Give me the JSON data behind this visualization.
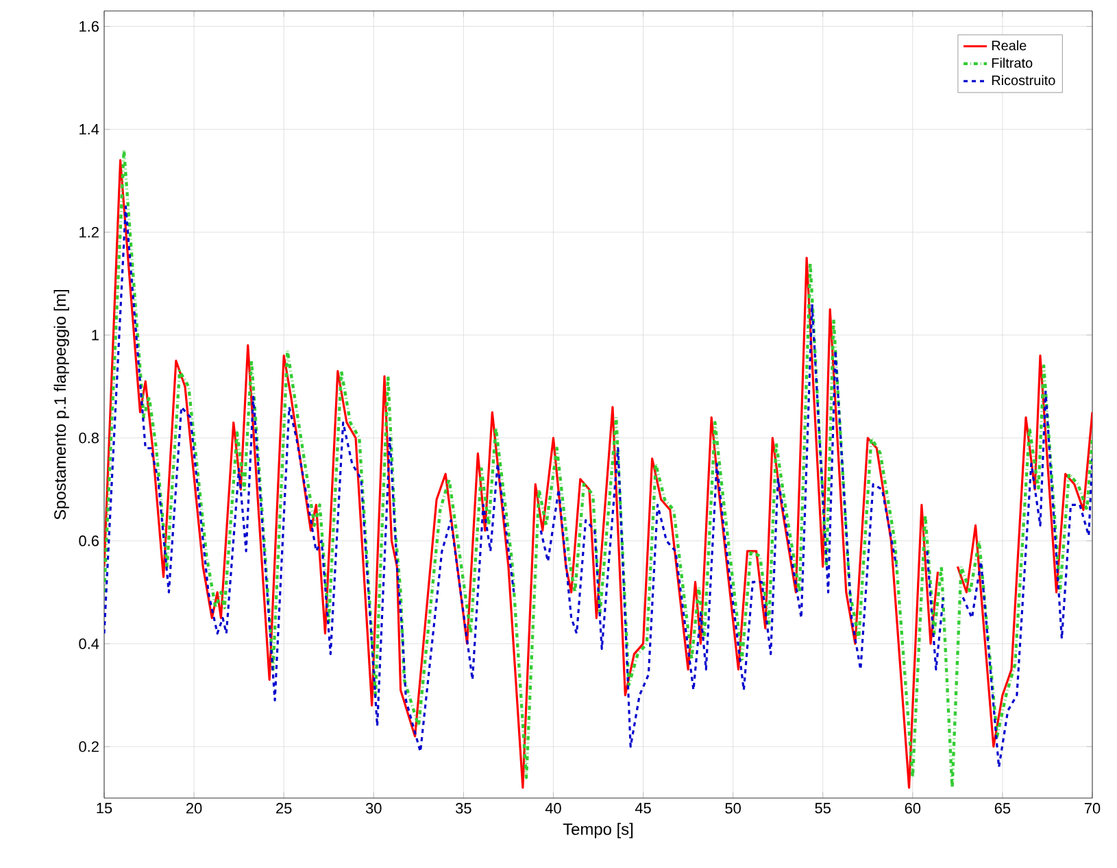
{
  "chart_data": {
    "type": "line",
    "xlabel": "Tempo [s]",
    "ylabel": "Spostamento p.1 flappeggio [m]",
    "xlim": [
      15,
      70
    ],
    "xticks": [
      15,
      20,
      25,
      30,
      35,
      40,
      45,
      50,
      55,
      60,
      65,
      70
    ],
    "ylim": [
      0.1,
      1.63
    ],
    "yticks": [
      0.2,
      0.4,
      0.6,
      0.8,
      {
        "value": 1,
        "label": "1"
      },
      1.2,
      1.4,
      1.6
    ],
    "grid": true,
    "legend": "top right",
    "marker": "none",
    "series": [
      {
        "name": "Reale",
        "color": "#ff0000",
        "line_style": "solid",
        "x": [
          15,
          15.9,
          17.0,
          17.3,
          17.7,
          18.3,
          19.0,
          19.5,
          20.5,
          21.0,
          21.3,
          21.5,
          22.2,
          22.6,
          23.0,
          24.2,
          25.0,
          25.4,
          26.5,
          26.8,
          27.3,
          28.0,
          28.5,
          29.0,
          29.9,
          30.6,
          31.0,
          31.3,
          31.5,
          32.3,
          33.5,
          34.0,
          35.2,
          35.8,
          36.2,
          36.6,
          37.5,
          38.3,
          39.0,
          39.4,
          40.0,
          40.7,
          41.0,
          41.5,
          42.0,
          42.4,
          43.3,
          44.0,
          44.5,
          45.0,
          45.5,
          46.0,
          46.5,
          47.5,
          47.9,
          48.2,
          48.8,
          49.2,
          50.3,
          50.8,
          51.3,
          51.8,
          52.2,
          52.7,
          53.5,
          54.1,
          55.0,
          55.4,
          56.3,
          56.8,
          57.5,
          58.0,
          58.8,
          59.8,
          60.5,
          61.0,
          61.4,
          62.0,
          62.5,
          63.0,
          63.5,
          64.5,
          65.0,
          65.5,
          66.3,
          66.8,
          67.1,
          68.0,
          68.5,
          69.0,
          69.5,
          70.0
        ],
        "values": [
          0.55,
          1.34,
          0.85,
          0.91,
          0.78,
          0.53,
          0.95,
          0.9,
          0.55,
          0.45,
          0.5,
          0.45,
          0.83,
          0.7,
          0.98,
          0.33,
          0.96,
          0.88,
          0.62,
          0.67,
          0.42,
          0.93,
          0.83,
          0.8,
          0.28,
          0.92,
          0.6,
          0.55,
          0.31,
          0.22,
          0.68,
          0.73,
          0.4,
          0.77,
          0.62,
          0.85,
          0.55,
          0.12,
          0.71,
          0.62,
          0.8,
          0.55,
          0.5,
          0.72,
          0.7,
          0.45,
          0.86,
          0.3,
          0.38,
          0.4,
          0.76,
          0.68,
          0.66,
          0.35,
          0.52,
          0.4,
          0.84,
          0.7,
          0.35,
          0.58,
          0.58,
          0.43,
          0.8,
          0.67,
          0.5,
          1.15,
          0.55,
          1.05,
          0.5,
          0.4,
          0.8,
          0.78,
          0.6,
          0.12,
          0.67,
          0.4,
          0.54,
          null,
          0.55,
          0.5,
          0.63,
          0.2,
          0.3,
          0.35,
          0.84,
          0.7,
          0.96,
          0.5,
          0.73,
          0.71,
          0.66,
          0.85
        ]
      },
      {
        "name": "Filtrato",
        "color": "#33cc33",
        "line_style": "dotted",
        "x": [
          15,
          16.1,
          17.2,
          17.5,
          17.9,
          18.5,
          19.2,
          19.7,
          20.7,
          21.2,
          21.5,
          21.7,
          22.4,
          22.8,
          23.2,
          24.4,
          25.2,
          25.6,
          26.7,
          27.0,
          27.5,
          28.2,
          28.7,
          29.2,
          30.1,
          30.8,
          31.2,
          31.5,
          31.7,
          32.5,
          33.7,
          34.2,
          35.4,
          36.0,
          36.4,
          36.8,
          37.7,
          38.5,
          39.2,
          39.6,
          40.2,
          40.9,
          41.2,
          41.7,
          42.2,
          42.6,
          43.5,
          44.2,
          44.7,
          45.2,
          45.7,
          46.2,
          46.7,
          47.7,
          48.1,
          48.4,
          49.0,
          49.4,
          50.5,
          51.0,
          51.5,
          52.0,
          52.4,
          52.9,
          53.7,
          54.3,
          55.2,
          55.6,
          56.5,
          57.0,
          57.7,
          58.2,
          59.0,
          60.0,
          60.7,
          61.2,
          61.6,
          62.2,
          62.7,
          63.2,
          63.7,
          64.7,
          65.2,
          65.7,
          66.5,
          67.0,
          67.3,
          68.2,
          68.7,
          69.2,
          69.7,
          70.0
        ],
        "values": [
          0.5,
          1.36,
          0.84,
          0.88,
          0.78,
          0.55,
          0.93,
          0.9,
          0.57,
          0.47,
          0.5,
          0.47,
          0.81,
          0.7,
          0.95,
          0.35,
          0.97,
          0.88,
          0.63,
          0.67,
          0.44,
          0.93,
          0.83,
          0.8,
          0.3,
          0.92,
          0.62,
          0.5,
          0.33,
          0.24,
          0.66,
          0.72,
          0.42,
          0.74,
          0.63,
          0.82,
          0.56,
          0.14,
          0.7,
          0.63,
          0.78,
          0.56,
          0.5,
          0.71,
          0.69,
          0.46,
          0.84,
          0.32,
          0.38,
          0.4,
          0.75,
          0.68,
          0.66,
          0.37,
          0.51,
          0.41,
          0.83,
          0.7,
          0.37,
          0.58,
          0.57,
          0.44,
          0.79,
          0.67,
          0.5,
          1.14,
          0.55,
          1.03,
          0.5,
          0.41,
          0.8,
          0.77,
          0.6,
          0.14,
          0.65,
          0.42,
          0.55,
          0.12,
          0.55,
          0.5,
          0.6,
          0.22,
          0.3,
          0.36,
          0.82,
          0.7,
          0.94,
          0.5,
          0.73,
          0.71,
          0.66,
          0.8
        ]
      },
      {
        "name": "Ricostruito",
        "color": "#0000cc",
        "line_style": "dashed",
        "x": [
          15,
          16.2,
          17.3,
          17.6,
          18.0,
          18.6,
          19.3,
          19.8,
          20.8,
          21.3,
          21.6,
          21.8,
          22.5,
          22.9,
          23.3,
          24.5,
          25.3,
          25.7,
          26.8,
          27.1,
          27.6,
          28.3,
          28.8,
          29.3,
          30.2,
          30.9,
          31.3,
          31.6,
          31.8,
          32.6,
          33.8,
          34.3,
          35.5,
          36.1,
          36.5,
          36.9,
          37.8,
          38.6,
          39.3,
          39.7,
          40.3,
          41.0,
          41.3,
          41.8,
          42.3,
          42.7,
          43.6,
          44.3,
          44.8,
          45.3,
          45.8,
          46.3,
          46.8,
          47.8,
          48.2,
          48.5,
          49.1,
          49.5,
          50.6,
          51.1,
          51.6,
          52.1,
          52.5,
          53.0,
          53.8,
          54.4,
          55.3,
          55.7,
          56.6,
          57.1,
          57.8,
          58.3,
          59.1,
          60.1,
          60.8,
          61.3,
          61.7,
          62.3,
          62.8,
          63.3,
          63.8,
          64.8,
          65.3,
          65.8,
          66.6,
          67.1,
          67.4,
          68.3,
          68.8,
          69.3,
          69.8,
          70.0
        ],
        "values": [
          0.42,
          1.25,
          0.78,
          0.78,
          0.72,
          0.5,
          0.86,
          0.84,
          0.5,
          0.42,
          0.45,
          0.42,
          0.74,
          0.58,
          0.88,
          0.29,
          0.86,
          0.8,
          0.58,
          0.6,
          0.38,
          0.83,
          0.75,
          0.72,
          0.24,
          0.8,
          0.55,
          0.42,
          0.29,
          0.19,
          0.58,
          0.64,
          0.33,
          0.67,
          0.58,
          0.75,
          0.5,
          null,
          0.62,
          0.56,
          0.7,
          0.45,
          0.42,
          0.64,
          0.62,
          0.39,
          0.78,
          0.2,
          0.3,
          0.34,
          0.67,
          0.6,
          0.58,
          0.31,
          0.46,
          0.35,
          0.75,
          0.62,
          0.31,
          0.52,
          0.52,
          0.38,
          0.72,
          0.62,
          0.45,
          1.06,
          0.5,
          0.97,
          0.45,
          0.35,
          0.71,
          0.7,
          0.55,
          null,
          0.58,
          0.35,
          0.49,
          null,
          0.49,
          0.45,
          0.56,
          0.16,
          0.27,
          0.3,
          0.75,
          0.63,
          0.89,
          0.41,
          0.67,
          0.67,
          0.61,
          0.76
        ]
      }
    ]
  }
}
